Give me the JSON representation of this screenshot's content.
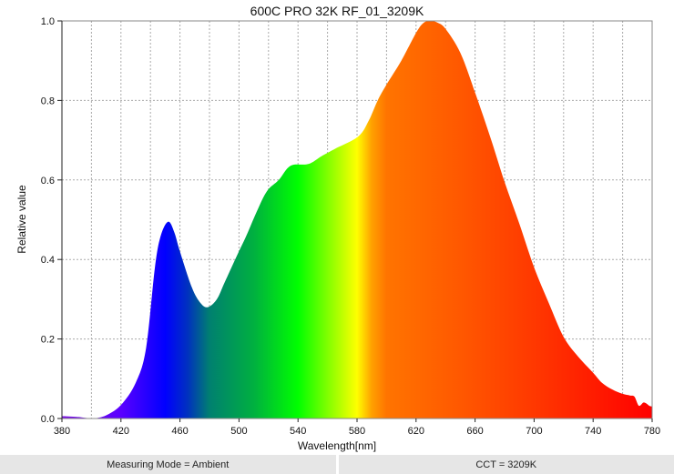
{
  "chart_data": {
    "type": "area",
    "title": "600C PRO 32K RF_01_3209K",
    "xlabel": "Wavelength[nm]",
    "ylabel": "Relative value",
    "xlim": [
      380,
      780
    ],
    "ylim": [
      0,
      1.0
    ],
    "xticks": [
      380,
      420,
      460,
      500,
      540,
      580,
      620,
      660,
      700,
      740,
      780
    ],
    "yticks": [
      0.0,
      0.2,
      0.4,
      0.6,
      0.8,
      1.0
    ],
    "grid": true,
    "fill": "visible-spectrum gradient",
    "x": [
      380,
      390,
      395,
      401,
      410,
      420,
      430,
      437,
      443,
      447,
      452,
      456,
      460,
      468,
      474,
      479,
      485,
      490,
      498,
      505,
      512,
      519,
      527,
      535,
      547,
      556,
      566,
      581,
      588,
      594,
      600,
      610,
      620,
      625,
      630,
      635,
      640,
      650,
      660,
      671,
      680,
      690,
      700,
      710,
      720,
      730,
      740,
      746,
      753,
      760,
      765,
      768,
      771,
      774,
      776,
      778,
      780
    ],
    "y": [
      0.006,
      0.004,
      0.002,
      0.0,
      0.008,
      0.034,
      0.09,
      0.176,
      0.38,
      0.46,
      0.495,
      0.47,
      0.42,
      0.33,
      0.29,
      0.28,
      0.3,
      0.34,
      0.405,
      0.46,
      0.52,
      0.572,
      0.6,
      0.636,
      0.64,
      0.66,
      0.68,
      0.71,
      0.75,
      0.8,
      0.84,
      0.9,
      0.97,
      0.995,
      1.0,
      0.995,
      0.98,
      0.92,
      0.82,
      0.7,
      0.595,
      0.49,
      0.38,
      0.29,
      0.205,
      0.155,
      0.115,
      0.09,
      0.073,
      0.062,
      0.058,
      0.055,
      0.032,
      0.04,
      0.038,
      0.032,
      0.03
    ]
  },
  "footer": {
    "measuring_mode": "Measuring Mode = Ambient",
    "cct": "CCT = 3209K"
  }
}
